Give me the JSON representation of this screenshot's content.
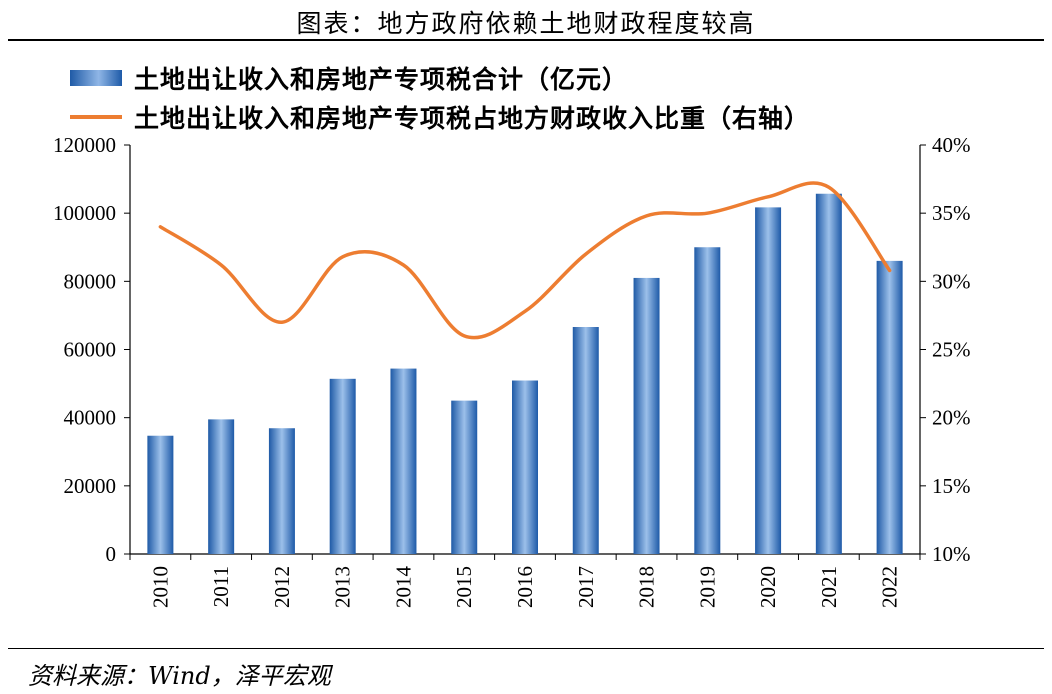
{
  "title": "图表：地方政府依赖土地财政程度较高",
  "source": "资料来源：Wind，泽平宏观",
  "chart_data": {
    "type": "bar",
    "categories": [
      "2010",
      "2011",
      "2012",
      "2013",
      "2014",
      "2015",
      "2016",
      "2017",
      "2018",
      "2019",
      "2020",
      "2021",
      "2022"
    ],
    "series": [
      {
        "name": "土地出让收入和房地产专项税合计（亿元）",
        "type": "bar",
        "axis": "left",
        "color": "#2e75b6",
        "values": [
          34700,
          39500,
          36900,
          51400,
          54400,
          45000,
          50900,
          66600,
          81000,
          90000,
          101700,
          105700,
          86000
        ]
      },
      {
        "name": "土地出让收入和房地产专项税占地方财政收入比重（右轴）",
        "type": "line",
        "axis": "right",
        "color": "#ed7d31",
        "values": [
          34.0,
          31.2,
          27.0,
          31.8,
          31.2,
          26.0,
          27.8,
          32.0,
          34.8,
          35.0,
          36.2,
          36.9,
          30.8
        ]
      }
    ],
    "y_left": {
      "min": 0,
      "max": 120000,
      "ticks": [
        "0",
        "20000",
        "40000",
        "60000",
        "80000",
        "100000",
        "120000"
      ]
    },
    "y_right": {
      "min": 10,
      "max": 40,
      "ticks": [
        "10%",
        "15%",
        "20%",
        "25%",
        "30%",
        "35%",
        "40%"
      ]
    },
    "grid": false,
    "legend": "top-left"
  }
}
